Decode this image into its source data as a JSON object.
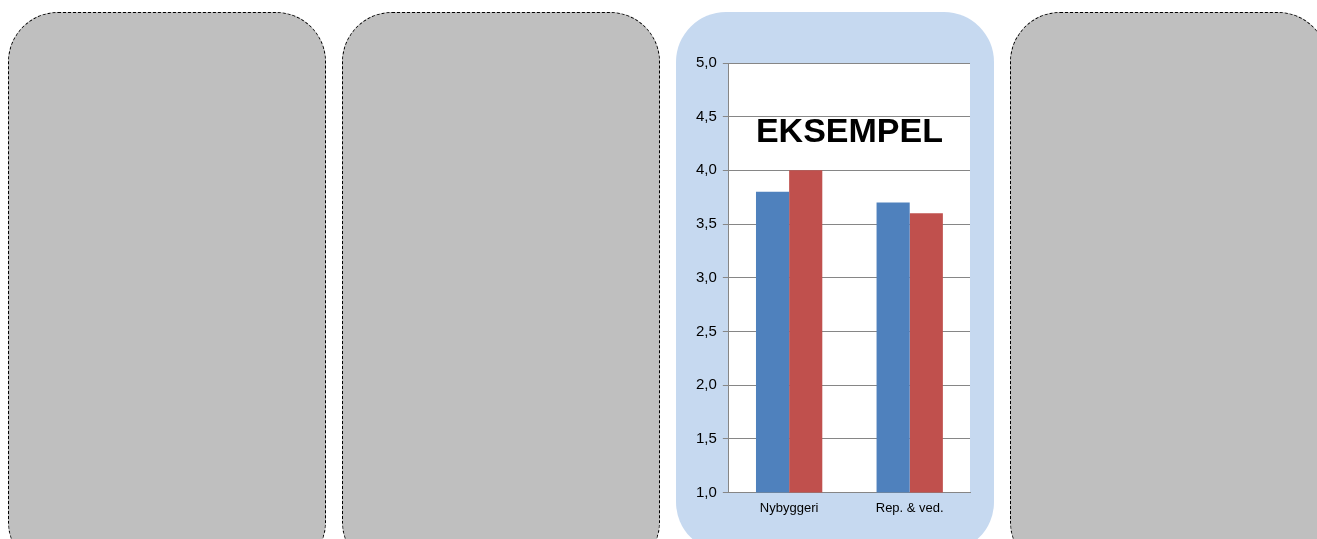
{
  "chart_data": {
    "type": "bar",
    "categories": [
      "Nybyggeri",
      "Rep. & ved."
    ],
    "series": [
      {
        "color": "#4f81bd",
        "values": [
          3.8,
          3.7
        ]
      },
      {
        "color": "#c0504d",
        "values": [
          4.0,
          3.6
        ]
      }
    ],
    "ylim": [
      1,
      5
    ],
    "yticks": [
      {
        "value": 1,
        "label": "1,0"
      },
      {
        "value": 1.5,
        "label": "1,5"
      },
      {
        "value": 2,
        "label": "2,0"
      },
      {
        "value": 2.5,
        "label": "2,5"
      },
      {
        "value": 3,
        "label": "3,0"
      },
      {
        "value": 3.5,
        "label": "3,5"
      },
      {
        "value": 4,
        "label": "4,0"
      },
      {
        "value": 4.5,
        "label": "4,5"
      },
      {
        "value": 5,
        "label": "5,0"
      }
    ],
    "grid": "y",
    "legend": false,
    "annotations": [
      "EKSEMPEL"
    ]
  }
}
